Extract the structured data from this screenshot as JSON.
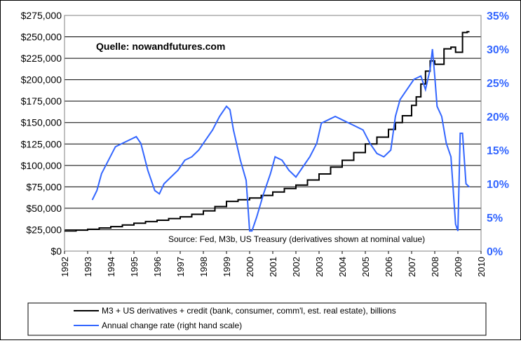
{
  "chart_data": {
    "type": "line",
    "title": "",
    "annotation_source_top": "Quelle: nowandfutures.com",
    "annotation_source_bottom": "Source: Fed, M3b, US Treasury (derivatives shown at nominal value)",
    "x_ticks": [
      "1992",
      "1993",
      "1994",
      "1995",
      "1996",
      "1997",
      "1998",
      "1999",
      "2000",
      "2001",
      "2002",
      "2003",
      "2004",
      "2005",
      "2006",
      "2007",
      "2008",
      "2009",
      "2010"
    ],
    "xlim": [
      1992,
      2010
    ],
    "y_left": {
      "ticks": [
        "$0",
        "$25,000",
        "$50,000",
        "$75,000",
        "$100,000",
        "$125,000",
        "$150,000",
        "$175,000",
        "$200,000",
        "$225,000",
        "$250,000",
        "$275,000"
      ],
      "ylim": [
        0,
        275000
      ]
    },
    "y_right": {
      "ticks": [
        "0%",
        "5%",
        "10%",
        "15%",
        "20%",
        "25%",
        "30%",
        "35%"
      ],
      "ylim": [
        0,
        35
      ]
    },
    "colors": {
      "m3_series": "#000000",
      "change_series": "#3366ff",
      "right_axis_text": "#3366ff"
    },
    "series": [
      {
        "name": "M3 + US derivatives + credit (bank, consumer, comm'l, est. real estate), billions",
        "axis": "left",
        "step": true,
        "x": [
          1992.0,
          1992.5,
          1993.0,
          1993.5,
          1994.0,
          1994.5,
          1995.0,
          1995.5,
          1996.0,
          1996.5,
          1997.0,
          1997.5,
          1998.0,
          1998.5,
          1999.0,
          1999.5,
          2000.0,
          2000.5,
          2001.0,
          2001.5,
          2002.0,
          2002.5,
          2003.0,
          2003.5,
          2004.0,
          2004.5,
          2005.0,
          2005.5,
          2006.0,
          2006.3,
          2006.6,
          2007.0,
          2007.2,
          2007.4,
          2007.6,
          2007.8,
          2008.0,
          2008.2,
          2008.4,
          2008.7,
          2008.9,
          2009.0,
          2009.2,
          2009.4
        ],
        "values": [
          23500,
          24500,
          25500,
          27000,
          28500,
          30500,
          32500,
          34500,
          36000,
          38000,
          40000,
          43000,
          47000,
          52000,
          58000,
          60000,
          62000,
          65000,
          69000,
          73000,
          77000,
          83000,
          90000,
          98000,
          106000,
          115000,
          125000,
          133000,
          142000,
          150000,
          158000,
          170000,
          180000,
          195000,
          210000,
          222000,
          218000,
          218000,
          236000,
          238000,
          232000,
          232000,
          255000,
          256000
        ]
      },
      {
        "name": "Annual change rate (right hand scale)",
        "axis": "right",
        "step": false,
        "x": [
          1993.2,
          1993.4,
          1993.6,
          1993.9,
          1994.2,
          1994.5,
          1994.8,
          1995.1,
          1995.3,
          1995.6,
          1995.9,
          1996.1,
          1996.3,
          1996.6,
          1996.9,
          1997.2,
          1997.5,
          1997.8,
          1998.1,
          1998.4,
          1998.7,
          1999.0,
          1999.15,
          1999.3,
          1999.6,
          1999.85,
          2000.0,
          2000.1,
          2000.3,
          2000.6,
          2000.9,
          2001.1,
          2001.4,
          2001.7,
          2002.0,
          2002.3,
          2002.6,
          2002.9,
          2003.1,
          2003.4,
          2003.7,
          2004.0,
          2004.3,
          2004.6,
          2004.9,
          2005.2,
          2005.5,
          2005.8,
          2006.1,
          2006.3,
          2006.5,
          2006.8,
          2007.1,
          2007.4,
          2007.6,
          2007.8,
          2007.9,
          2008.0,
          2008.1,
          2008.3,
          2008.5,
          2008.7,
          2008.9,
          2009.0,
          2009.1,
          2009.2,
          2009.35,
          2009.5
        ],
        "values": [
          7.6,
          9.0,
          11.5,
          13.5,
          15.5,
          16.0,
          16.5,
          17.0,
          16.0,
          12.0,
          9.0,
          8.5,
          10.0,
          11.0,
          12.0,
          13.5,
          14.0,
          15.0,
          16.5,
          18.0,
          20.0,
          21.5,
          21.0,
          18.0,
          13.5,
          10.5,
          3.0,
          3.0,
          5.0,
          8.5,
          11.5,
          14.0,
          13.5,
          12.0,
          11.0,
          12.5,
          14.0,
          16.0,
          19.0,
          19.5,
          20.0,
          19.5,
          19.0,
          18.5,
          18.0,
          16.0,
          14.5,
          14.0,
          15.0,
          20.0,
          22.5,
          24.0,
          25.5,
          26.0,
          24.0,
          27.0,
          30.0,
          26.0,
          21.5,
          20.0,
          16.0,
          14.0,
          4.0,
          3.0,
          17.5,
          17.5,
          10.0,
          9.5
        ]
      }
    ],
    "legend": {
      "placement": "bottom",
      "entries": [
        "M3 + US derivatives + credit (bank, consumer, comm'l, est. real estate), billions",
        "Annual change rate (right hand scale)"
      ]
    }
  }
}
